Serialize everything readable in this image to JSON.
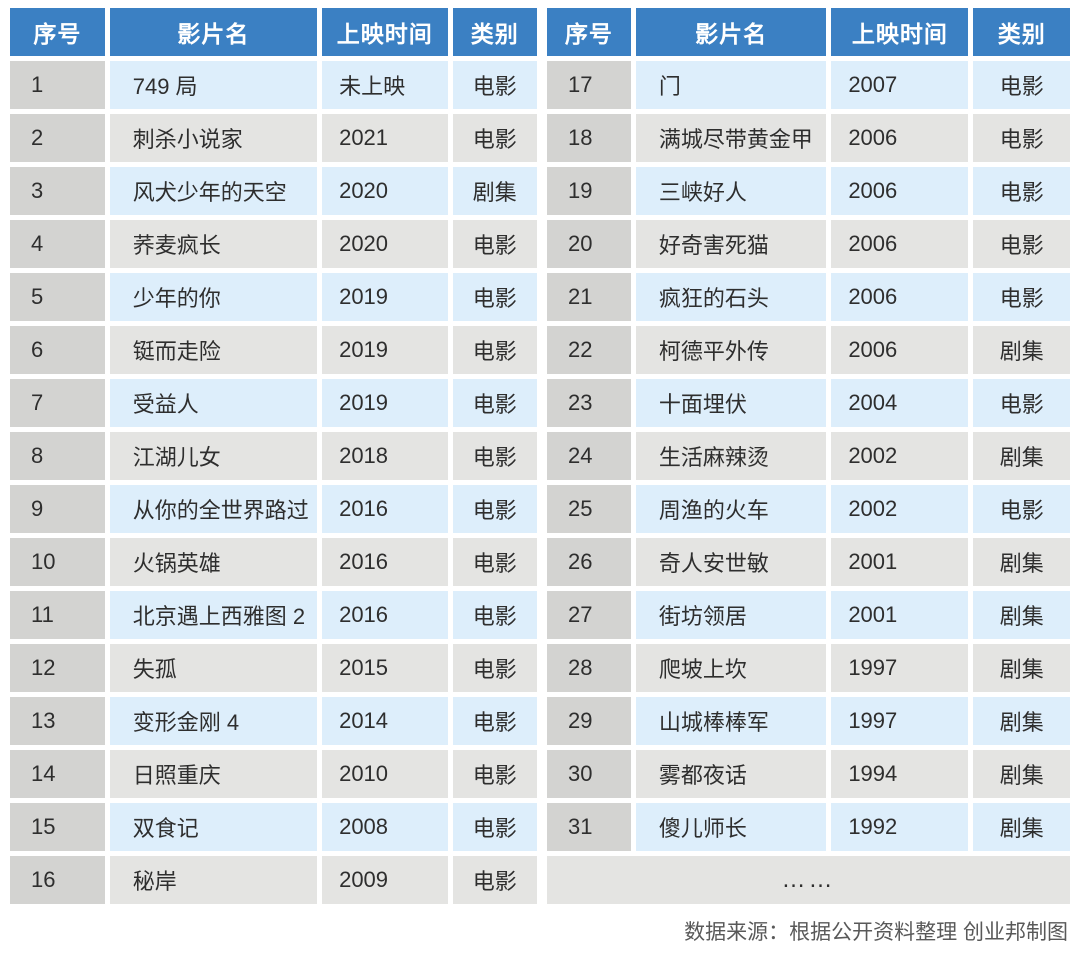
{
  "colors": {
    "header_bg": "#3b80c3",
    "header_text": "#ffffff",
    "row_blue": "#ddeefb",
    "row_gray": "#e4e4e2",
    "index_column_bg": "#d3d3d1",
    "cell_text": "#2e2e2e",
    "footer_text": "#595959"
  },
  "chart_data": {
    "type": "table",
    "columns": [
      "序号",
      "影片名",
      "上映时间",
      "类别"
    ],
    "tables": [
      {
        "rows": [
          [
            "1",
            "749 局",
            "未上映",
            "电影"
          ],
          [
            "2",
            "刺杀小说家",
            "2021",
            "电影"
          ],
          [
            "3",
            "风犬少年的天空",
            "2020",
            "剧集"
          ],
          [
            "4",
            "荞麦疯长",
            "2020",
            "电影"
          ],
          [
            "5",
            "少年的你",
            "2019",
            "电影"
          ],
          [
            "6",
            "铤而走险",
            "2019",
            "电影"
          ],
          [
            "7",
            "受益人",
            "2019",
            "电影"
          ],
          [
            "8",
            "江湖儿女",
            "2018",
            "电影"
          ],
          [
            "9",
            "从你的全世界路过",
            "2016",
            "电影"
          ],
          [
            "10",
            "火锅英雄",
            "2016",
            "电影"
          ],
          [
            "11",
            "北京遇上西雅图 2",
            "2016",
            "电影"
          ],
          [
            "12",
            "失孤",
            "2015",
            "电影"
          ],
          [
            "13",
            "变形金刚 4",
            "2014",
            "电影"
          ],
          [
            "14",
            "日照重庆",
            "2010",
            "电影"
          ],
          [
            "15",
            "双食记",
            "2008",
            "电影"
          ],
          [
            "16",
            "秘岸",
            "2009",
            "电影"
          ]
        ]
      },
      {
        "rows": [
          [
            "17",
            "门",
            "2007",
            "电影"
          ],
          [
            "18",
            "满城尽带黄金甲",
            "2006",
            "电影"
          ],
          [
            "19",
            "三峡好人",
            "2006",
            "电影"
          ],
          [
            "20",
            "好奇害死猫",
            "2006",
            "电影"
          ],
          [
            "21",
            "疯狂的石头",
            "2006",
            "电影"
          ],
          [
            "22",
            "柯德平外传",
            "2006",
            "剧集"
          ],
          [
            "23",
            "十面埋伏",
            "2004",
            "电影"
          ],
          [
            "24",
            "生活麻辣烫",
            "2002",
            "剧集"
          ],
          [
            "25",
            "周渔的火车",
            "2002",
            "电影"
          ],
          [
            "26",
            "奇人安世敏",
            "2001",
            "剧集"
          ],
          [
            "27",
            "街坊领居",
            "2001",
            "剧集"
          ],
          [
            "28",
            "爬坡上坎",
            "1997",
            "剧集"
          ],
          [
            "29",
            "山城棒棒军",
            "1997",
            "剧集"
          ],
          [
            "30",
            "雾都夜话",
            "1994",
            "剧集"
          ],
          [
            "31",
            "傻儿师长",
            "1992",
            "剧集"
          ]
        ],
        "ellipsis_row": "……"
      }
    ],
    "source_note": "数据来源：根据公开资料整理 创业邦制图"
  }
}
